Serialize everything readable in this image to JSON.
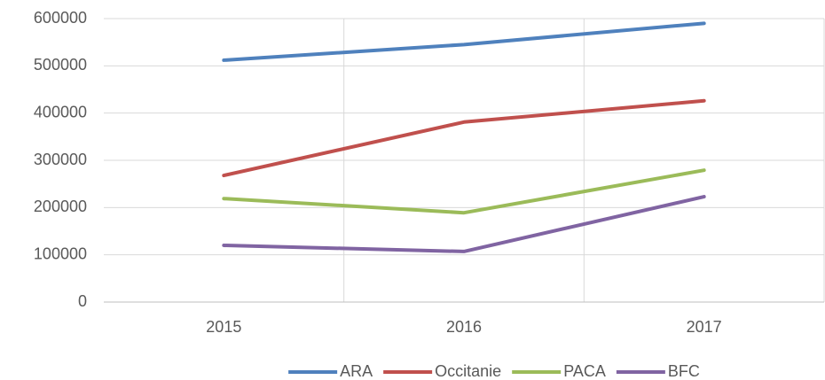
{
  "chart_data": {
    "type": "line",
    "categories": [
      "2015",
      "2016",
      "2017"
    ],
    "series": [
      {
        "name": "ARA",
        "color": "#4f81bd",
        "values": [
          512000,
          545000,
          590000
        ]
      },
      {
        "name": "Occitanie",
        "color": "#c0504d",
        "values": [
          268000,
          381000,
          426000
        ]
      },
      {
        "name": "PACA",
        "color": "#9bbb59",
        "values": [
          219000,
          189000,
          279000
        ]
      },
      {
        "name": "BFC",
        "color": "#8064a2",
        "values": [
          120000,
          107000,
          223000
        ]
      }
    ],
    "ylim": [
      0,
      600000
    ],
    "yticks": [
      0,
      100000,
      200000,
      300000,
      400000,
      500000,
      600000
    ],
    "grid": true,
    "legend": "bottom"
  }
}
